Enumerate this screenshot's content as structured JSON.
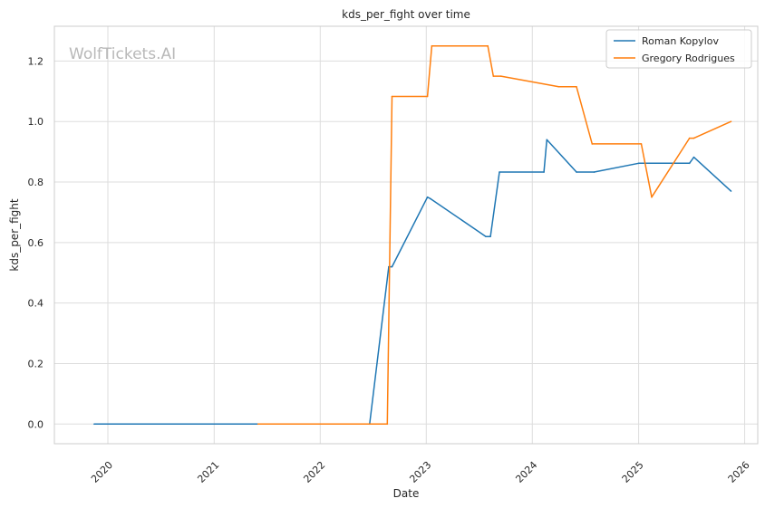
{
  "chart_data": {
    "type": "line",
    "title": "kds_per_fight over time",
    "xlabel": "Date",
    "ylabel": "kds_per_fight",
    "watermark": "WolfTickets.AI",
    "x_axis_type": "date",
    "xlim": [
      "2019-07-01",
      "2026-02-15"
    ],
    "ylim": [
      -0.065,
      1.315
    ],
    "x_ticks": [
      {
        "date": "2020-01-01",
        "label": "2020"
      },
      {
        "date": "2021-01-01",
        "label": "2021"
      },
      {
        "date": "2022-01-01",
        "label": "2022"
      },
      {
        "date": "2023-01-01",
        "label": "2023"
      },
      {
        "date": "2024-01-01",
        "label": "2024"
      },
      {
        "date": "2025-01-01",
        "label": "2025"
      },
      {
        "date": "2026-01-01",
        "label": "2026"
      }
    ],
    "y_ticks": [
      {
        "value": 0.0,
        "label": "0.0"
      },
      {
        "value": 0.2,
        "label": "0.2"
      },
      {
        "value": 0.4,
        "label": "0.4"
      },
      {
        "value": 0.6,
        "label": "0.6"
      },
      {
        "value": 0.8,
        "label": "0.8"
      },
      {
        "value": 1.0,
        "label": "1.0"
      },
      {
        "value": 1.2,
        "label": "1.2"
      }
    ],
    "grid": true,
    "legend_position": "top-right",
    "series": [
      {
        "name": "Roman Kopylov",
        "color": "#1f77b4",
        "points": [
          {
            "x": "2019-11-15",
            "y": 0.0
          },
          {
            "x": "2022-06-20",
            "y": 0.0
          },
          {
            "x": "2022-08-25",
            "y": 0.52
          },
          {
            "x": "2022-09-05",
            "y": 0.52
          },
          {
            "x": "2023-01-05",
            "y": 0.75
          },
          {
            "x": "2023-01-15",
            "y": 0.745
          },
          {
            "x": "2023-07-25",
            "y": 0.62
          },
          {
            "x": "2023-08-10",
            "y": 0.62
          },
          {
            "x": "2023-09-10",
            "y": 0.833
          },
          {
            "x": "2024-02-10",
            "y": 0.833
          },
          {
            "x": "2024-02-20",
            "y": 0.94
          },
          {
            "x": "2024-06-01",
            "y": 0.833
          },
          {
            "x": "2024-08-01",
            "y": 0.833
          },
          {
            "x": "2025-01-01",
            "y": 0.862
          },
          {
            "x": "2025-06-25",
            "y": 0.862
          },
          {
            "x": "2025-07-10",
            "y": 0.882
          },
          {
            "x": "2025-11-15",
            "y": 0.77
          }
        ]
      },
      {
        "name": "Gregory Rodrigues",
        "color": "#ff7f0e",
        "points": [
          {
            "x": "2021-06-01",
            "y": 0.0
          },
          {
            "x": "2022-08-20",
            "y": 0.0
          },
          {
            "x": "2022-09-05",
            "y": 1.083
          },
          {
            "x": "2023-01-05",
            "y": 1.083
          },
          {
            "x": "2023-01-20",
            "y": 1.25
          },
          {
            "x": "2023-08-01",
            "y": 1.25
          },
          {
            "x": "2023-08-20",
            "y": 1.15
          },
          {
            "x": "2023-09-15",
            "y": 1.15
          },
          {
            "x": "2024-04-01",
            "y": 1.115
          },
          {
            "x": "2024-06-01",
            "y": 1.115
          },
          {
            "x": "2024-07-25",
            "y": 0.926
          },
          {
            "x": "2025-01-10",
            "y": 0.926
          },
          {
            "x": "2025-02-15",
            "y": 0.75
          },
          {
            "x": "2025-06-25",
            "y": 0.945
          },
          {
            "x": "2025-07-10",
            "y": 0.945
          },
          {
            "x": "2025-11-15",
            "y": 1.0
          }
        ]
      }
    ]
  }
}
